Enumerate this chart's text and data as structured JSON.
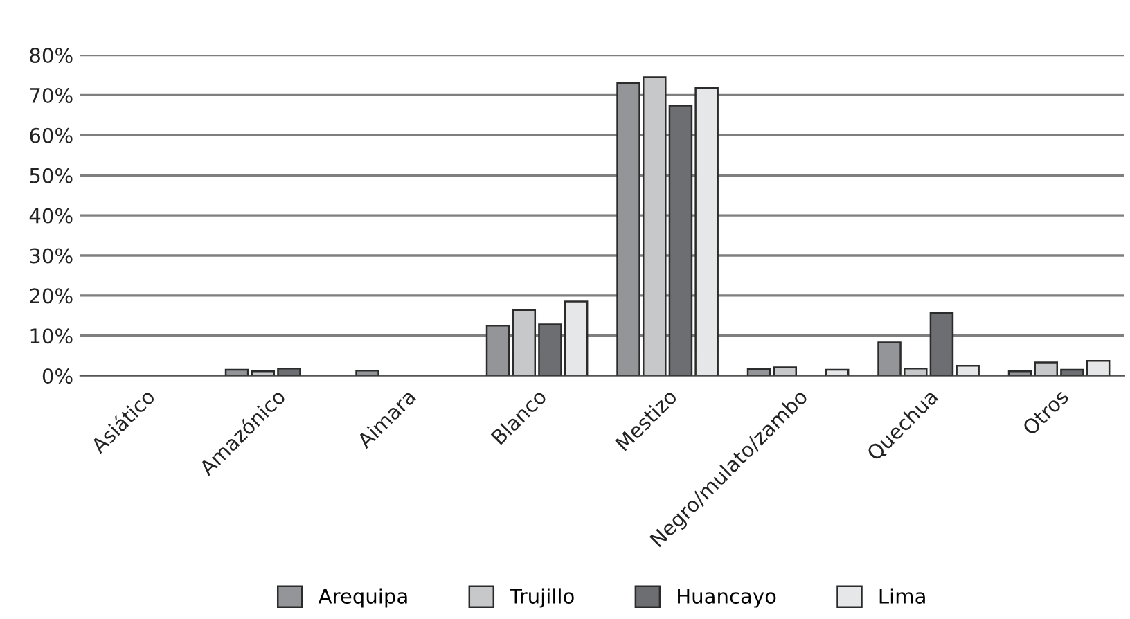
{
  "chart_data": {
    "type": "bar",
    "categories": [
      "Asiático",
      "Amazónico",
      "Aimara",
      "Blanco",
      "Mestizo",
      "Negro/mulato/zambo",
      "Quechua",
      "Otros"
    ],
    "series": [
      {
        "name": "Arequipa",
        "color": "#939598",
        "values": [
          null,
          1.5,
          1.3,
          12.5,
          73.0,
          1.7,
          8.3,
          1.1
        ]
      },
      {
        "name": "Trujillo",
        "color": "#c7c8ca",
        "values": [
          null,
          1.1,
          null,
          16.4,
          74.5,
          2.1,
          1.8,
          3.3
        ]
      },
      {
        "name": "Huancayo",
        "color": "#6d6e71",
        "values": [
          null,
          1.8,
          null,
          12.8,
          67.4,
          null,
          15.6,
          1.5
        ]
      },
      {
        "name": "Lima",
        "color": "#e6e7e8",
        "values": [
          null,
          null,
          null,
          18.5,
          71.8,
          1.5,
          2.5,
          3.7
        ]
      }
    ],
    "ylim": [
      0,
      80
    ],
    "yticks": [
      {
        "value": 0,
        "label": "0%"
      },
      {
        "value": 10,
        "label": "10%"
      },
      {
        "value": 20,
        "label": "20%"
      },
      {
        "value": 30,
        "label": "30%"
      },
      {
        "value": 40,
        "label": "40%"
      },
      {
        "value": 50,
        "label": "50%"
      },
      {
        "value": 60,
        "label": "60%"
      },
      {
        "value": 70,
        "label": "70%"
      },
      {
        "value": 80,
        "label": "80%"
      }
    ],
    "grid": "y",
    "legend": "bottom"
  }
}
